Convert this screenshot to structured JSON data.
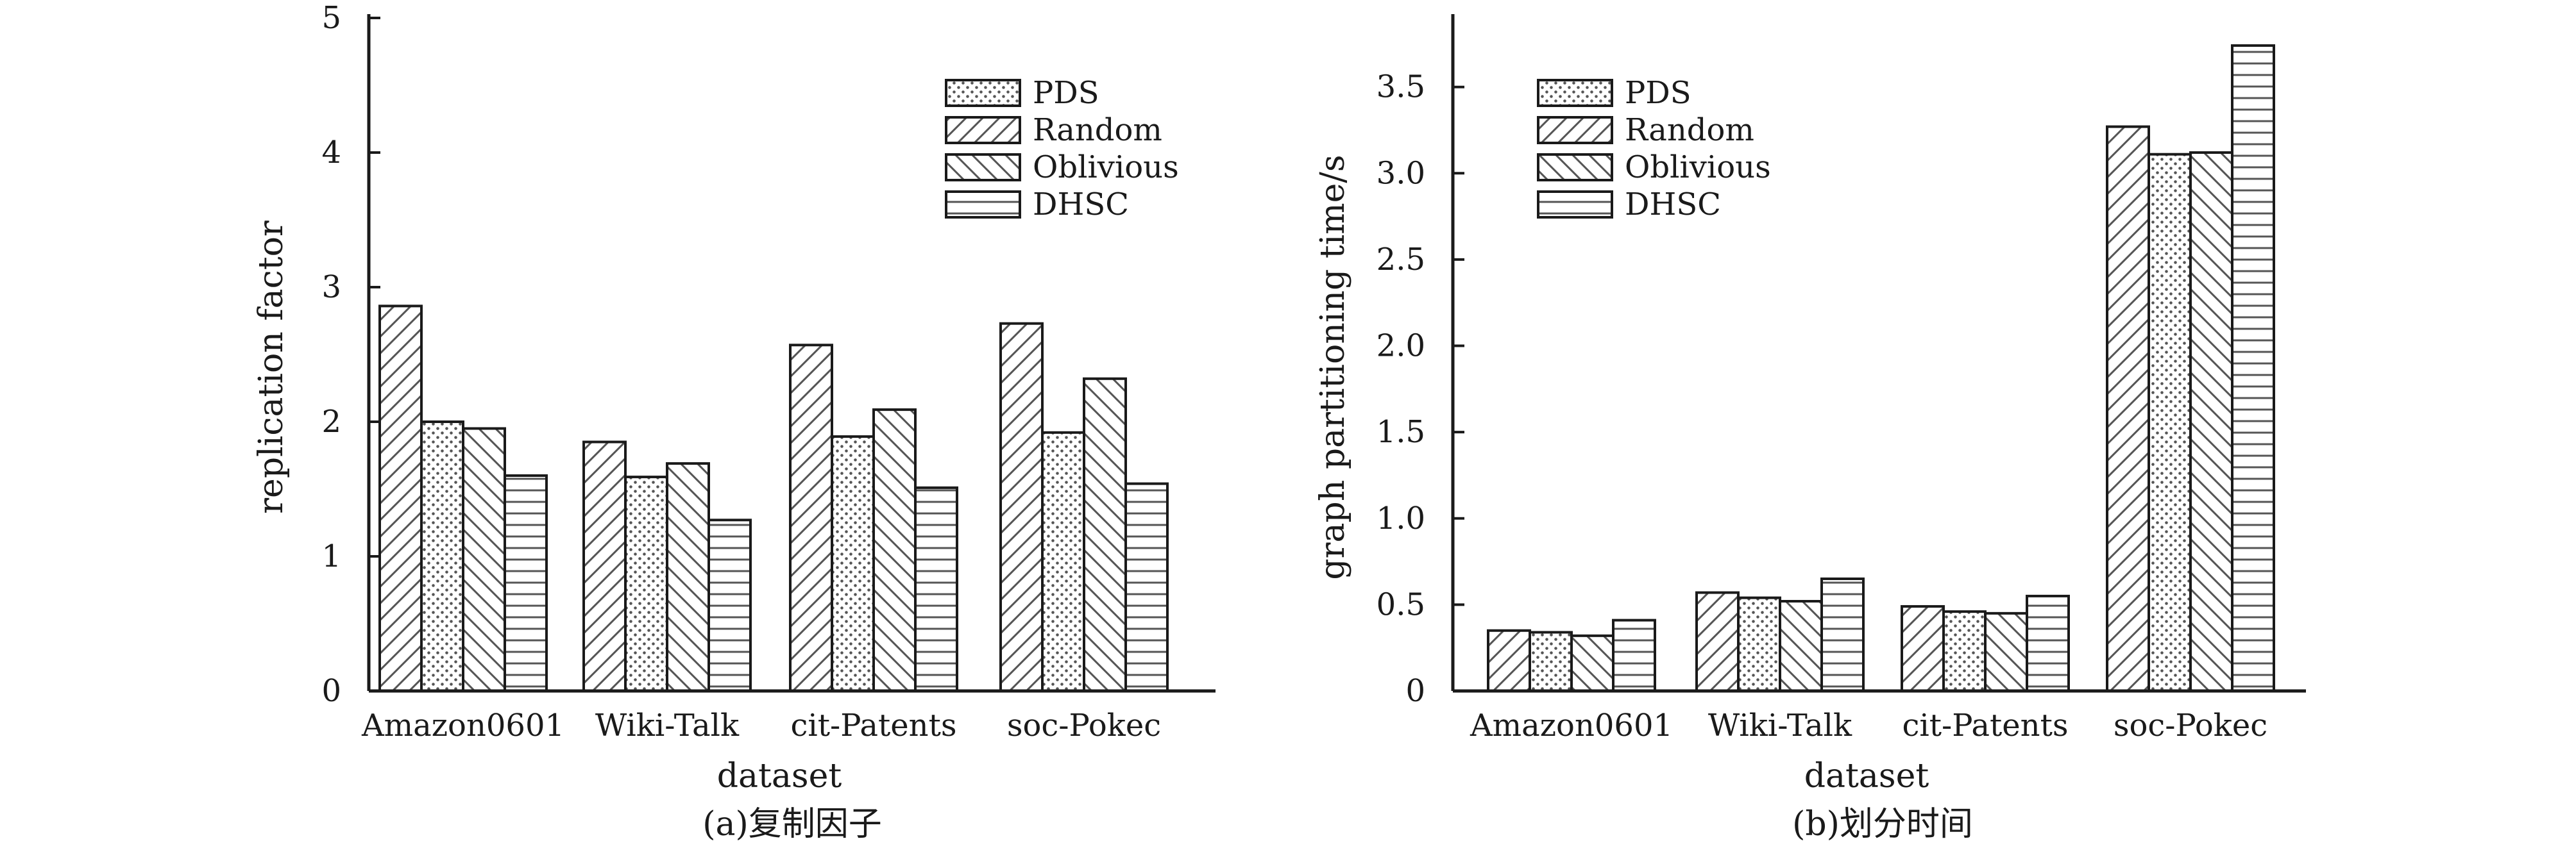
{
  "chart_data": [
    {
      "type": "bar",
      "title": "",
      "caption": "(a)复制因子",
      "xlabel": "dataset",
      "ylabel": "replication factor",
      "categories": [
        "Amazon0601",
        "Wiki-Talk",
        "cit-Patents",
        "soc-Pokec"
      ],
      "ylim": [
        0,
        5
      ],
      "yticks": [
        "0",
        "1",
        "2",
        "3",
        "4",
        "5"
      ],
      "legend_position": "top-right",
      "series": [
        {
          "name": "Random",
          "pattern": "diagonal-hatch",
          "values": [
            2.86,
            1.85,
            2.57,
            2.73
          ]
        },
        {
          "name": "PDS",
          "pattern": "dots",
          "values": [
            2.0,
            1.59,
            1.89,
            1.92
          ]
        },
        {
          "name": "Oblivious",
          "pattern": "back-diagonal-hatch",
          "values": [
            1.95,
            1.69,
            2.09,
            2.32
          ]
        },
        {
          "name": "DHSC",
          "pattern": "horizontal-lines",
          "values": [
            1.6,
            1.27,
            1.51,
            1.54
          ]
        }
      ],
      "legend_order": [
        "PDS",
        "Random",
        "Oblivious",
        "DHSC"
      ]
    },
    {
      "type": "bar",
      "title": "",
      "caption": "(b)划分时间",
      "xlabel": "dataset",
      "ylabel": "graph partitioning time/s",
      "categories": [
        "Amazon0601",
        "Wiki-Talk",
        "cit-Patents",
        "soc-Pokec"
      ],
      "ylim": [
        0,
        3.9
      ],
      "yticks": [
        "0",
        "0.5",
        "1.0",
        "1.5",
        "2.0",
        "2.5",
        "3.0",
        "3.5"
      ],
      "legend_position": "top-left",
      "series": [
        {
          "name": "Random",
          "pattern": "diagonal-hatch",
          "values": [
            0.35,
            0.57,
            0.49,
            3.27
          ]
        },
        {
          "name": "PDS",
          "pattern": "dots",
          "values": [
            0.34,
            0.54,
            0.46,
            3.11
          ]
        },
        {
          "name": "Oblivious",
          "pattern": "back-diagonal-hatch",
          "values": [
            0.32,
            0.52,
            0.45,
            3.12
          ]
        },
        {
          "name": "DHSC",
          "pattern": "horizontal-lines",
          "values": [
            0.41,
            0.65,
            0.55,
            3.74
          ]
        }
      ],
      "legend_order": [
        "PDS",
        "Random",
        "Oblivious",
        "DHSC"
      ]
    }
  ]
}
